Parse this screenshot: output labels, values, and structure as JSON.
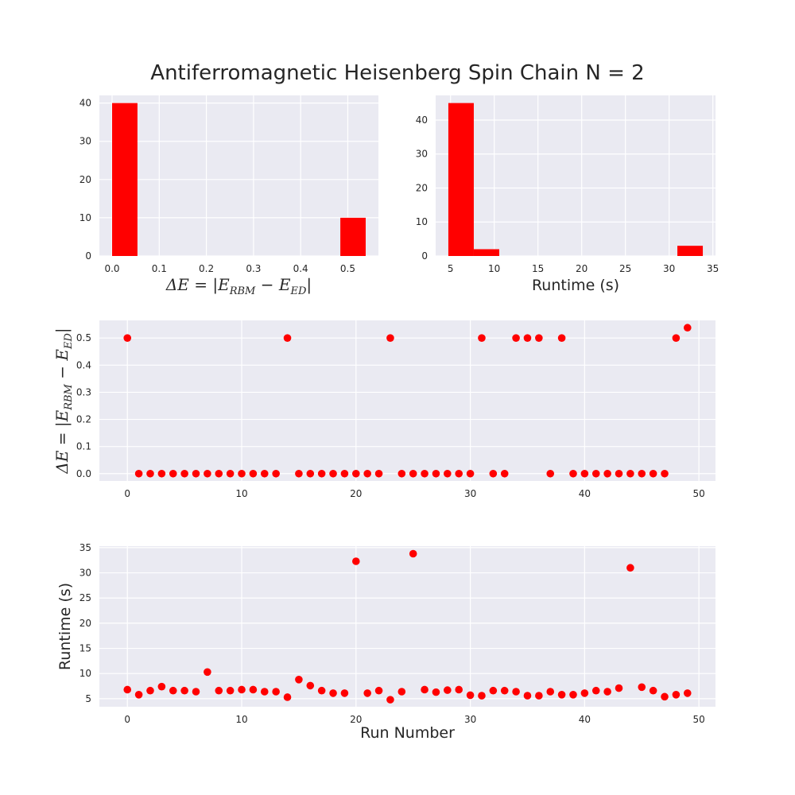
{
  "title": "Antiferromagnetic Heisenberg Spin Chain N = 2",
  "colors": {
    "marker": "#ff0000",
    "axes_bg": "#eaeaf2",
    "grid": "#ffffff",
    "text": "#262626"
  },
  "chart_data": [
    {
      "id": "hist_energy",
      "type": "bar",
      "title": "",
      "xlabel": "ΔE = |E_RBM − E_ED|",
      "xlabel_parts": {
        "prefix": "ΔE = |E",
        "sub1": "RBM",
        "mid": " − E",
        "sub2": "ED",
        "suffix": "|"
      },
      "ylabel": "",
      "bins": [
        {
          "x0": 0.0,
          "x1": 0.0538,
          "count": 40
        },
        {
          "x0": 0.0538,
          "x1": 0.1076,
          "count": 0
        },
        {
          "x0": 0.1076,
          "x1": 0.1614,
          "count": 0
        },
        {
          "x0": 0.1614,
          "x1": 0.2152,
          "count": 0
        },
        {
          "x0": 0.2152,
          "x1": 0.269,
          "count": 0
        },
        {
          "x0": 0.269,
          "x1": 0.3228,
          "count": 0
        },
        {
          "x0": 0.3228,
          "x1": 0.3766,
          "count": 0
        },
        {
          "x0": 0.3766,
          "x1": 0.4304,
          "count": 0
        },
        {
          "x0": 0.4304,
          "x1": 0.4842,
          "count": 0
        },
        {
          "x0": 0.4842,
          "x1": 0.538,
          "count": 10
        }
      ],
      "xlim": [
        -0.027,
        0.565
      ],
      "ylim": [
        0,
        42
      ],
      "xticks": [
        0.0,
        0.1,
        0.2,
        0.3,
        0.4,
        0.5
      ],
      "xtick_labels": [
        "0.0",
        "0.1",
        "0.2",
        "0.3",
        "0.4",
        "0.5"
      ],
      "yticks": [
        0,
        10,
        20,
        30,
        40
      ],
      "ytick_labels": [
        "0",
        "10",
        "20",
        "30",
        "40"
      ],
      "grid": true
    },
    {
      "id": "hist_runtime",
      "type": "bar",
      "title": "",
      "xlabel": "Runtime (s)",
      "ylabel": "",
      "bins": [
        {
          "x0": 4.75,
          "x1": 7.66,
          "count": 45
        },
        {
          "x0": 7.66,
          "x1": 10.57,
          "count": 2
        },
        {
          "x0": 10.57,
          "x1": 13.48,
          "count": 0
        },
        {
          "x0": 13.48,
          "x1": 16.39,
          "count": 0
        },
        {
          "x0": 16.39,
          "x1": 19.3,
          "count": 0
        },
        {
          "x0": 19.3,
          "x1": 22.21,
          "count": 0
        },
        {
          "x0": 22.21,
          "x1": 25.12,
          "count": 0
        },
        {
          "x0": 25.12,
          "x1": 28.03,
          "count": 0
        },
        {
          "x0": 28.03,
          "x1": 30.94,
          "count": 0
        },
        {
          "x0": 30.94,
          "x1": 33.85,
          "count": 3
        }
      ],
      "xlim": [
        3.3,
        35.3
      ],
      "ylim": [
        0,
        47.25
      ],
      "xticks": [
        5,
        10,
        15,
        20,
        25,
        30,
        35
      ],
      "xtick_labels": [
        "5",
        "10",
        "15",
        "20",
        "25",
        "30",
        "35"
      ],
      "yticks": [
        0,
        10,
        20,
        30,
        40
      ],
      "ytick_labels": [
        "0",
        "10",
        "20",
        "30",
        "40"
      ],
      "grid": true
    },
    {
      "id": "scatter_energy",
      "type": "scatter",
      "title": "",
      "xlabel": "",
      "ylabel": "ΔE = |E_RBM − E_ED|",
      "ylabel_parts": {
        "prefix": "ΔE = |E",
        "sub1": "RBM",
        "mid": " − E",
        "sub2": "ED",
        "suffix": "|"
      },
      "x": [
        0,
        1,
        2,
        3,
        4,
        5,
        6,
        7,
        8,
        9,
        10,
        11,
        12,
        13,
        14,
        15,
        16,
        17,
        18,
        19,
        20,
        21,
        22,
        23,
        24,
        25,
        26,
        27,
        28,
        29,
        30,
        31,
        32,
        33,
        34,
        35,
        36,
        37,
        38,
        39,
        40,
        41,
        42,
        43,
        44,
        45,
        46,
        47,
        48,
        49
      ],
      "y": [
        0.5,
        0,
        0,
        0,
        0,
        0,
        0,
        0,
        0,
        0,
        0,
        0,
        0,
        0,
        0.5,
        0,
        0,
        0,
        0,
        0,
        0,
        0,
        0,
        0.5,
        0,
        0,
        0,
        0,
        0,
        0,
        0,
        0.5,
        0,
        0,
        0.5,
        0.5,
        0.5,
        0,
        0.5,
        0,
        0,
        0,
        0,
        0,
        0,
        0,
        0,
        0,
        0.5,
        0.538
      ],
      "xlim": [
        -2.45,
        51.45
      ],
      "ylim": [
        -0.027,
        0.565
      ],
      "xticks": [
        0,
        10,
        20,
        30,
        40,
        50
      ],
      "xtick_labels": [
        "0",
        "10",
        "20",
        "30",
        "40",
        "50"
      ],
      "yticks": [
        0.0,
        0.1,
        0.2,
        0.3,
        0.4,
        0.5
      ],
      "ytick_labels": [
        "0.0",
        "0.1",
        "0.2",
        "0.3",
        "0.4",
        "0.5"
      ],
      "grid": true
    },
    {
      "id": "scatter_runtime",
      "type": "scatter",
      "title": "",
      "xlabel": "Run Number",
      "ylabel": "Runtime (s)",
      "x": [
        0,
        1,
        2,
        3,
        4,
        5,
        6,
        7,
        8,
        9,
        10,
        11,
        12,
        13,
        14,
        15,
        16,
        17,
        18,
        19,
        20,
        21,
        22,
        23,
        24,
        25,
        26,
        27,
        28,
        29,
        30,
        31,
        32,
        33,
        34,
        35,
        36,
        37,
        38,
        39,
        40,
        41,
        42,
        43,
        44,
        45,
        46,
        47,
        48,
        49
      ],
      "y": [
        6.8,
        5.8,
        6.6,
        7.4,
        6.6,
        6.6,
        6.4,
        10.3,
        6.6,
        6.6,
        6.8,
        6.8,
        6.4,
        6.4,
        5.3,
        8.8,
        7.6,
        6.6,
        6.1,
        6.1,
        32.3,
        6.1,
        6.6,
        4.8,
        6.4,
        33.8,
        6.8,
        6.3,
        6.7,
        6.8,
        5.7,
        5.6,
        6.6,
        6.6,
        6.4,
        5.6,
        5.6,
        6.4,
        5.8,
        5.8,
        6.1,
        6.6,
        6.4,
        7.1,
        31.0,
        7.3,
        6.6,
        5.4,
        5.8,
        6.1
      ],
      "xlim": [
        -2.45,
        51.45
      ],
      "ylim": [
        3.4,
        35.3
      ],
      "xticks": [
        0,
        10,
        20,
        30,
        40,
        50
      ],
      "xtick_labels": [
        "0",
        "10",
        "20",
        "30",
        "40",
        "50"
      ],
      "yticks": [
        5,
        10,
        15,
        20,
        25,
        30,
        35
      ],
      "ytick_labels": [
        "5",
        "10",
        "15",
        "20",
        "25",
        "30",
        "35"
      ],
      "grid": true
    }
  ]
}
